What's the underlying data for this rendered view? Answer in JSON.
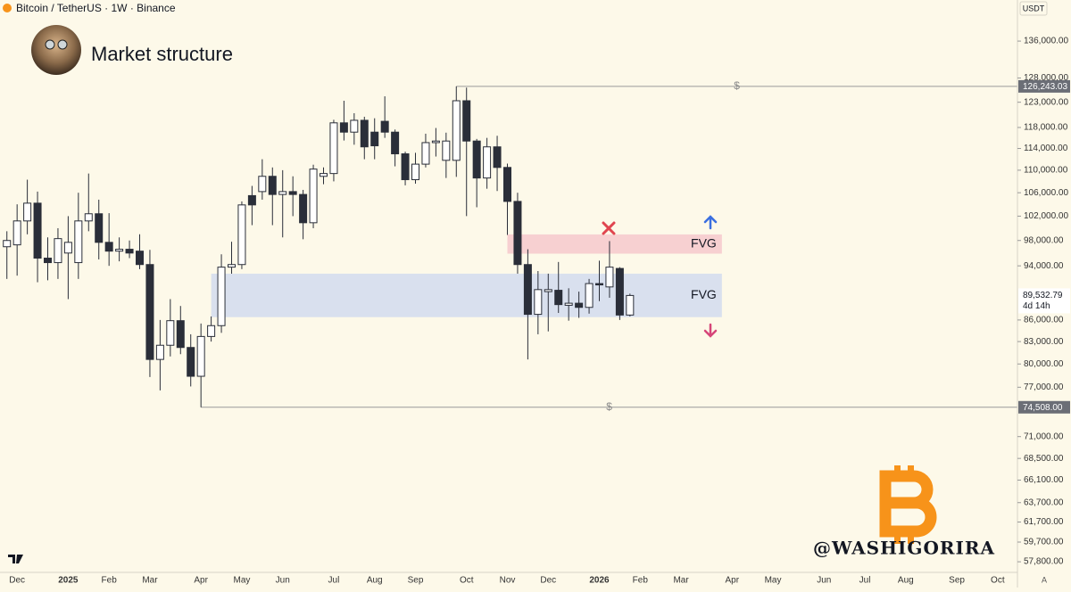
{
  "header": {
    "symbol": "Bitcoin / TetherUS · 1W · Binance",
    "currency": "USDT",
    "scale_button": "A"
  },
  "chart_data": {
    "type": "candlestick",
    "title": "Market structure",
    "log_scale": true,
    "grid": false,
    "up_color": "#ffffff",
    "down_color": "#2a2e39",
    "categories": [
      null,
      "Dec",
      null,
      null,
      null,
      null,
      "2025",
      null,
      null,
      null,
      "Feb",
      null,
      null,
      null,
      "Mar",
      null,
      null,
      null,
      null,
      "Apr",
      null,
      null,
      null,
      "May",
      null,
      null,
      null,
      "Jun",
      null,
      null,
      null,
      null,
      "Jul",
      null,
      null,
      null,
      "Aug",
      null,
      null,
      null,
      "Sep",
      null,
      null,
      null,
      null,
      "Oct",
      null,
      null,
      null,
      "Nov",
      null,
      null,
      null,
      "Dec",
      null,
      null,
      null,
      null,
      "2026",
      null,
      null,
      null,
      "Feb",
      null,
      null,
      null,
      "Mar",
      null,
      null,
      null,
      null,
      "Apr",
      null,
      null,
      null,
      "May",
      null,
      null,
      null,
      null,
      "Jun",
      null,
      null,
      null,
      "Jul",
      null,
      null,
      null,
      "Aug",
      null,
      null,
      null,
      null,
      "Sep",
      null,
      null,
      null,
      "Oct",
      null
    ],
    "open": [
      97000,
      97300,
      101200,
      104200,
      95200,
      94500,
      96000,
      94500,
      101200,
      102400,
      97700,
      96300,
      96600,
      96300,
      94200,
      80600,
      82500,
      85900,
      82200,
      78400,
      83700,
      85200,
      93800,
      94200,
      105500,
      106200,
      108900,
      105700,
      106200,
      105700,
      100900,
      108900,
      109400,
      118900,
      117100,
      119400,
      117100,
      119200,
      117100,
      113000,
      108300,
      111100,
      115100,
      111800,
      111800,
      123300,
      115400,
      108600,
      114300,
      110500,
      104500,
      94200,
      86800,
      90100,
      90300,
      88100,
      88400,
      87800,
      91300,
      90800,
      93600,
      86700,
      null,
      null,
      null,
      null,
      null,
      null,
      null,
      null,
      null,
      null,
      null,
      null,
      null,
      null,
      null,
      null,
      null,
      null,
      null,
      null,
      null,
      null,
      null,
      null,
      null,
      null,
      null,
      null,
      null,
      null,
      null,
      null,
      null,
      null,
      null,
      null,
      null
    ],
    "high": [
      99500,
      104000,
      108300,
      106200,
      98500,
      100000,
      102000,
      106000,
      109400,
      104800,
      102500,
      98500,
      98000,
      99000,
      96500,
      86000,
      89000,
      88000,
      84000,
      85500,
      86500,
      95800,
      97800,
      104500,
      107200,
      112000,
      110500,
      110000,
      108900,
      106500,
      111000,
      110500,
      119500,
      123300,
      120800,
      120100,
      119800,
      124200,
      117600,
      113400,
      113200,
      116800,
      117900,
      117000,
      126243.03,
      126000,
      115800,
      116000,
      116400,
      111200,
      106000,
      96600,
      93200,
      92800,
      94600,
      90600,
      90100,
      92000,
      94800,
      97900,
      93800,
      89800,
      null,
      null,
      null,
      null,
      null,
      null,
      null,
      null,
      null,
      null,
      null,
      null,
      null,
      null,
      null,
      null,
      null,
      null,
      null,
      null,
      null,
      null,
      null,
      null,
      null,
      null,
      null,
      null,
      null,
      null,
      null,
      null,
      null,
      null,
      null,
      null,
      null
    ],
    "low": [
      92000,
      92500,
      99000,
      91500,
      91800,
      92000,
      89000,
      92000,
      99500,
      95000,
      94000,
      94700,
      95200,
      93500,
      78300,
      76600,
      81000,
      81300,
      77100,
      74508,
      83000,
      84200,
      92800,
      93500,
      100500,
      104800,
      100500,
      98500,
      102000,
      98200,
      100000,
      107500,
      108000,
      115500,
      114700,
      112000,
      112000,
      116000,
      110700,
      107300,
      107600,
      110500,
      112500,
      108600,
      108800,
      102000,
      103500,
      106700,
      106300,
      98900,
      92800,
      80600,
      84000,
      84400,
      87000,
      85900,
      86300,
      86900,
      88700,
      89200,
      86000,
      86500,
      null,
      null,
      null,
      null,
      null,
      null,
      null,
      null,
      null,
      null,
      null,
      null,
      null,
      null,
      null,
      null,
      null,
      null,
      null,
      null,
      null,
      null,
      null,
      null,
      null,
      null,
      null,
      null,
      null,
      null,
      null,
      null,
      null,
      null,
      null,
      null,
      null
    ],
    "close": [
      98000,
      101200,
      104200,
      95200,
      94500,
      98300,
      97700,
      101200,
      102400,
      97700,
      96300,
      96600,
      96000,
      94200,
      80600,
      82500,
      85900,
      82200,
      78400,
      83700,
      85200,
      93800,
      94200,
      103900,
      103900,
      108900,
      105700,
      106200,
      105700,
      100900,
      110200,
      109400,
      118900,
      117100,
      119400,
      114300,
      114500,
      117100,
      113000,
      108300,
      111100,
      115100,
      115400,
      115400,
      123300,
      115400,
      108600,
      114300,
      110500,
      104500,
      94200,
      86800,
      90400,
      90400,
      88200,
      88400,
      87800,
      91300,
      91100,
      93800,
      86700,
      89532.79,
      null,
      null,
      null,
      null,
      null,
      null,
      null,
      null,
      null,
      null,
      null,
      null,
      null,
      null,
      null,
      null,
      null,
      null,
      null,
      null,
      null,
      null,
      null,
      null,
      null,
      null,
      null,
      null,
      null,
      null,
      null,
      null,
      null,
      null,
      null,
      null,
      null
    ],
    "ylim": [
      56800,
      145500
    ],
    "yticks": [
      {
        "value": 136000,
        "label": "136,000.00"
      },
      {
        "value": 128000,
        "label": "128,000.00"
      },
      {
        "value": 123000,
        "label": "123,000.00"
      },
      {
        "value": 118000,
        "label": "118,000.00"
      },
      {
        "value": 114000,
        "label": "114,000.00"
      },
      {
        "value": 110000,
        "label": "110,000.00"
      },
      {
        "value": 106000,
        "label": "106,000.00"
      },
      {
        "value": 102000,
        "label": "102,000.00"
      },
      {
        "value": 98000,
        "label": "98,000.00"
      },
      {
        "value": 94000,
        "label": "94,000.00"
      },
      {
        "value": 86000,
        "label": "86,000.00"
      },
      {
        "value": 83000,
        "label": "83,000.00"
      },
      {
        "value": 80000,
        "label": "80,000.00"
      },
      {
        "value": 77000,
        "label": "77,000.00"
      },
      {
        "value": 71000,
        "label": "71,000.00"
      },
      {
        "value": 68500,
        "label": "68,500.00"
      },
      {
        "value": 66100,
        "label": "66,100.00"
      },
      {
        "value": 63700,
        "label": "63,700.00"
      },
      {
        "value": 61700,
        "label": "61,700.00"
      },
      {
        "value": 59700,
        "label": "59,700.00"
      },
      {
        "value": 57800,
        "label": "57,800.00"
      }
    ],
    "zones": [
      {
        "label": "FVG",
        "top": 98980,
        "bottom": 95900,
        "start": 49,
        "end": 70,
        "color": "#f7d0d1"
      },
      {
        "label": "FVG",
        "top": 92800,
        "bottom": 86400,
        "start": 20,
        "end": 70,
        "color": "#d9e0ee"
      }
    ],
    "levels": [
      {
        "value": 126243.03,
        "label": "126,243.03",
        "marker": "$",
        "start": 44
      },
      {
        "value": 74508,
        "label": "74,508.00",
        "marker": "$",
        "start": 19
      }
    ],
    "last_price": {
      "value": 89532.79,
      "label": "89,532.79",
      "countdown": "4d 14h"
    }
  },
  "watermark": "@WASHIGORIRA"
}
